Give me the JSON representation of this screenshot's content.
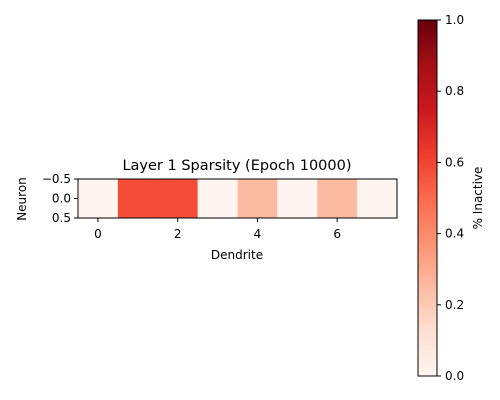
{
  "chart_data": {
    "type": "heatmap",
    "title": "Layer 1 Sparsity (Epoch 10000)",
    "xlabel": "Dendrite",
    "ylabel": "Neuron",
    "x": [
      0,
      1,
      2,
      3,
      4,
      5,
      6,
      7
    ],
    "y": [
      0
    ],
    "values": [
      [
        0.0,
        0.58,
        0.58,
        0.0,
        0.25,
        0.0,
        0.25,
        0.0
      ]
    ],
    "xlim": [
      -0.5,
      7.5
    ],
    "ylim": [
      0.5,
      -0.5
    ],
    "x_ticks": [
      "0",
      "2",
      "4",
      "6"
    ],
    "y_ticks": [
      "−0.5",
      "0.0",
      "0.5"
    ],
    "colormap": "Reds",
    "colorbar": {
      "label": "% Inactive",
      "range": [
        0.0,
        1.0
      ],
      "ticks": [
        "0.0",
        "0.2",
        "0.4",
        "0.6",
        "0.8",
        "1.0"
      ]
    }
  }
}
